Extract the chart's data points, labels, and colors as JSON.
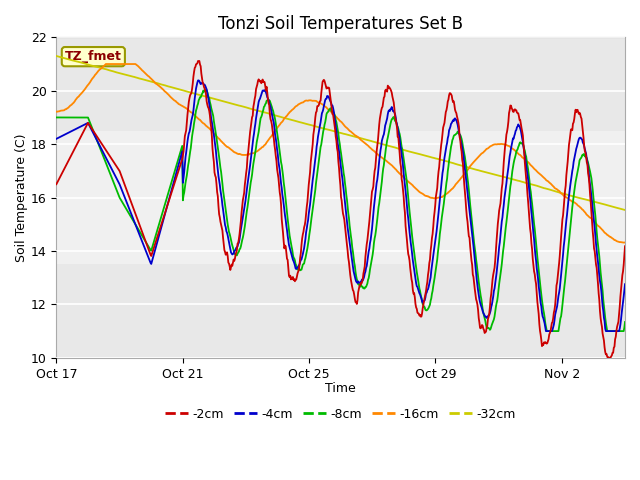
{
  "title": "Tonzi Soil Temperatures Set B",
  "xlabel": "Time",
  "ylabel": "Soil Temperature (C)",
  "ylim": [
    10,
    22
  ],
  "xlim": [
    0,
    18
  ],
  "x_ticks": [
    0,
    4,
    8,
    12,
    16
  ],
  "x_tick_labels": [
    "Oct 17",
    "Oct 21",
    "Oct 25",
    "Oct 29",
    "Nov 2"
  ],
  "y_ticks": [
    10,
    12,
    14,
    16,
    18,
    20,
    22
  ],
  "colors": {
    "-2cm": "#cc0000",
    "-4cm": "#0000cc",
    "-8cm": "#00bb00",
    "-16cm": "#ff8800",
    "-32cm": "#cccc00"
  },
  "legend_labels": [
    "-2cm",
    "-4cm",
    "-8cm",
    "-16cm",
    "-32cm"
  ],
  "annotation_text": "TZ_fmet",
  "annotation_color": "#8B0000",
  "annotation_bg": "#ffffcc",
  "annotation_edge": "#999900",
  "bg_outer": "#ffffff",
  "bg_inner": "#e8e8e8",
  "bg_light_band": "#f0f0f0",
  "grid_color": "#ffffff",
  "title_fontsize": 12,
  "axis_fontsize": 9,
  "legend_fontsize": 9
}
